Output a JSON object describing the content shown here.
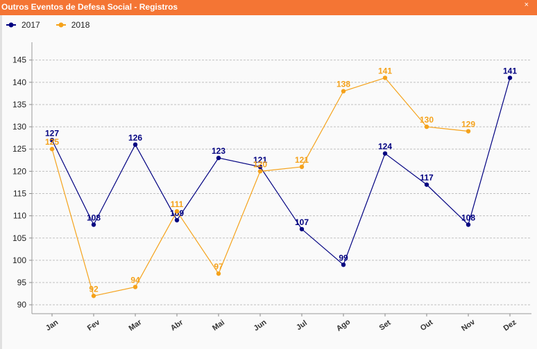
{
  "window": {
    "title": "Outros Eventos de Defesa Social - Registros",
    "close_glyph": "×"
  },
  "colors": {
    "titlebar": "#f47534",
    "series_2017": "#000080",
    "series_2018": "#f5a21b",
    "grid": "#c0c0c0"
  },
  "chart_data": {
    "type": "line",
    "title": "Outros Eventos de Defesa Social - Registros",
    "xlabel": "",
    "ylabel": "",
    "categories": [
      "Jan",
      "Fev",
      "Mar",
      "Abr",
      "Mai",
      "Jun",
      "Jul",
      "Ago",
      "Set",
      "Out",
      "Nov",
      "Dez"
    ],
    "yticks": [
      90,
      95,
      100,
      105,
      110,
      115,
      120,
      125,
      130,
      135,
      140,
      145
    ],
    "ylim": [
      88,
      149
    ],
    "grid": true,
    "legend_position": "top-left",
    "series": [
      {
        "name": "2017",
        "color": "#000080",
        "values": [
          127,
          108,
          126,
          109,
          123,
          121,
          107,
          99,
          124,
          117,
          108,
          141
        ],
        "labels": [
          "127",
          "108",
          "126",
          "109",
          "123",
          "121",
          "107",
          "99",
          "124",
          "117",
          "108",
          "141"
        ]
      },
      {
        "name": "2018",
        "color": "#f5a21b",
        "values": [
          125,
          92,
          94,
          111,
          97,
          120,
          121,
          138,
          141,
          130,
          129,
          null
        ],
        "labels": [
          "125",
          "92",
          "94",
          "111",
          "97",
          "120",
          "121",
          "138",
          "141",
          "130",
          "129",
          ""
        ]
      }
    ]
  }
}
